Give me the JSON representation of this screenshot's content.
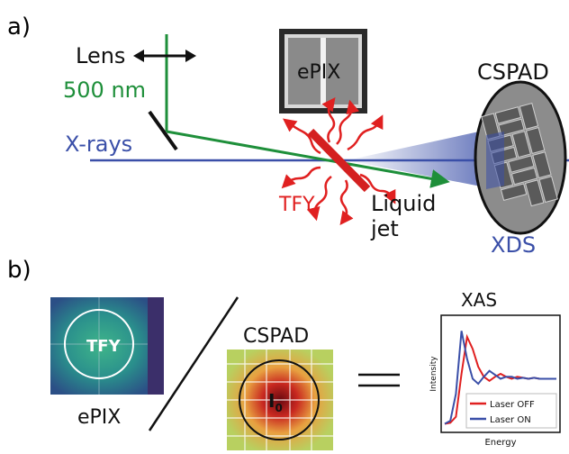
{
  "panel_a": {
    "label": "a)",
    "lens": "Lens",
    "wavelength": "500 nm",
    "xrays": "X-rays",
    "epix": "ePIX",
    "cspad": "CSPAD",
    "tfy": "TFY",
    "liquid": "Liquid",
    "jet": "jet",
    "xds": "XDS",
    "colors": {
      "laser": "#1e8f3a",
      "xray": "#3a4fa8",
      "fluorescence": "#e02020",
      "jet": "#d42020"
    }
  },
  "panel_b": {
    "label": "b)",
    "epix_label": "ePIX",
    "tfy_label": "TFY",
    "cspad_label": "CSPAD",
    "i0_main": "I",
    "i0_sub": "0",
    "xas_title": "XAS"
  },
  "chart_data": {
    "type": "line",
    "title": "XAS",
    "xlabel": "Energy",
    "ylabel": "Intensity",
    "x": [
      0,
      1,
      2,
      3,
      4,
      5,
      6,
      7,
      8,
      9,
      10,
      11,
      12,
      13,
      14,
      15,
      16,
      17,
      18,
      19,
      20
    ],
    "series": [
      {
        "name": "Laser OFF",
        "color": "#e02020",
        "values": [
          0.05,
          0.06,
          0.12,
          0.55,
          0.92,
          0.8,
          0.62,
          0.52,
          0.48,
          0.52,
          0.55,
          0.52,
          0.5,
          0.52,
          0.51,
          0.5,
          0.51,
          0.5,
          0.5,
          0.5,
          0.5
        ]
      },
      {
        "name": "Laser ON",
        "color": "#3a4fa8",
        "values": [
          0.05,
          0.08,
          0.35,
          0.98,
          0.7,
          0.5,
          0.45,
          0.52,
          0.58,
          0.54,
          0.5,
          0.52,
          0.52,
          0.5,
          0.51,
          0.5,
          0.51,
          0.5,
          0.5,
          0.5,
          0.5
        ]
      }
    ],
    "ylim": [
      0,
      1.1
    ],
    "legend": "bottom-right"
  }
}
